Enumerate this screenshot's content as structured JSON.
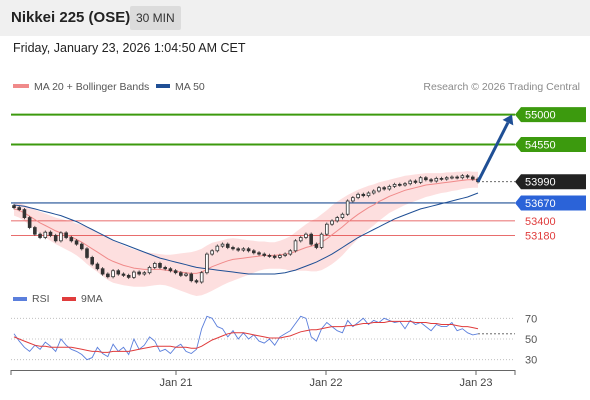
{
  "header": {
    "title": "Nikkei 225 (OSE)",
    "interval": "30 MIN",
    "timestamp": "Friday, January 23, 2026 1:04:50 AM CET"
  },
  "legend": {
    "ma20": "MA 20 + Bollinger Bands",
    "ma50": "MA 50",
    "credit": "Research © 2026 Trading Central",
    "rsi": "RSI",
    "ma9": "9MA"
  },
  "colors": {
    "green": "#3c9a0e",
    "blue": "#2b63d8",
    "blue_dark": "#1f4f95",
    "red": "#e03c3c",
    "ma20": "#f08a8a",
    "band": "#fdd9d9",
    "candle": "#333333",
    "rsi": "#5b7fdc"
  },
  "chart_data": [
    {
      "type": "candlestick",
      "title": "Nikkei 225 (OSE)",
      "interval": "30 MIN",
      "ylim": [
        52420,
        55250
      ],
      "x_ticks": [
        "Jan 21",
        "Jan 22",
        "Jan 23"
      ],
      "levels": [
        {
          "value": 55000,
          "label": "55000",
          "style": "resistance-green"
        },
        {
          "value": 54550,
          "label": "54550",
          "style": "resistance-green"
        },
        {
          "value": 53990,
          "label": "53990",
          "style": "last-price"
        },
        {
          "value": 53670,
          "label": "53670",
          "style": "pivot-blue"
        },
        {
          "value": 53400,
          "label": "53400",
          "style": "support-red"
        },
        {
          "value": 53180,
          "label": "53180",
          "style": "support-red"
        }
      ],
      "close": [
        53600,
        53570,
        53450,
        53300,
        53200,
        53150,
        53230,
        53180,
        53100,
        53220,
        53150,
        53100,
        53050,
        52980,
        52850,
        52750,
        52680,
        52600,
        52560,
        52650,
        52600,
        52580,
        52550,
        52630,
        52600,
        52620,
        52700,
        52760,
        52700,
        52680,
        52650,
        52620,
        52580,
        52600,
        52500,
        52480,
        52620,
        52900,
        52950,
        53020,
        53050,
        53000,
        52980,
        52960,
        52980,
        52950,
        52920,
        52900,
        52880,
        52870,
        52850,
        52880,
        52900,
        52950,
        53100,
        53150,
        53200,
        53050,
        53000,
        53200,
        53350,
        53400,
        53450,
        53500,
        53700,
        53750,
        53800,
        53780,
        53820,
        53850,
        53900,
        53880,
        53920,
        53950,
        53940,
        53960,
        54000,
        53980,
        54050,
        54020,
        54000,
        54040,
        54030,
        54050,
        54060,
        54050,
        54080,
        54060,
        54030,
        53990
      ],
      "ma20": [
        53580,
        53560,
        53520,
        53470,
        53420,
        53370,
        53330,
        53290,
        53250,
        53220,
        53190,
        53160,
        53120,
        53080,
        53030,
        52980,
        52930,
        52880,
        52830,
        52790,
        52760,
        52730,
        52710,
        52690,
        52680,
        52670,
        52670,
        52670,
        52670,
        52660,
        52650,
        52640,
        52630,
        52620,
        52610,
        52610,
        52630,
        52670,
        52710,
        52740,
        52770,
        52800,
        52820,
        52830,
        52840,
        52850,
        52860,
        52870,
        52880,
        52880,
        52880,
        52890,
        52900,
        52910,
        52940,
        52970,
        53000,
        53020,
        53040,
        53080,
        53130,
        53190,
        53250,
        53310,
        53380,
        53440,
        53500,
        53550,
        53600,
        53640,
        53690,
        53730,
        53770,
        53800,
        53830,
        53860,
        53880,
        53900,
        53920,
        53940,
        53950,
        53960,
        53970,
        53980,
        53990,
        54000,
        54010,
        54020,
        54020,
        54020
      ],
      "ma50": [
        53640,
        53630,
        53620,
        53600,
        53580,
        53560,
        53540,
        53520,
        53500,
        53480,
        53450,
        53420,
        53390,
        53350,
        53310,
        53270,
        53230,
        53190,
        53150,
        53110,
        53080,
        53050,
        53020,
        52990,
        52960,
        52930,
        52900,
        52870,
        52840,
        52820,
        52800,
        52780,
        52760,
        52740,
        52720,
        52700,
        52690,
        52680,
        52670,
        52660,
        52650,
        52640,
        52630,
        52620,
        52610,
        52600,
        52600,
        52600,
        52600,
        52600,
        52600,
        52610,
        52620,
        52640,
        52660,
        52690,
        52720,
        52750,
        52780,
        52820,
        52860,
        52900,
        52950,
        53000,
        53050,
        53100,
        53150,
        53190,
        53230,
        53270,
        53310,
        53350,
        53390,
        53430,
        53460,
        53490,
        53520,
        53550,
        53580,
        53600,
        53620,
        53640,
        53660,
        53680,
        53700,
        53720,
        53740,
        53760,
        53790,
        53820
      ],
      "band_width": [
        100,
        110,
        120,
        140,
        150,
        170,
        180,
        190,
        200,
        210,
        220,
        230,
        240,
        260,
        280,
        290,
        300,
        310,
        320,
        320,
        310,
        300,
        290,
        280,
        270,
        260,
        250,
        240,
        230,
        230,
        240,
        260,
        280,
        300,
        320,
        340,
        350,
        360,
        360,
        350,
        340,
        330,
        320,
        300,
        280,
        260,
        240,
        220,
        210,
        200,
        200,
        210,
        230,
        260,
        290,
        320,
        350,
        380,
        400,
        420,
        430,
        440,
        440,
        430,
        410,
        390,
        370,
        350,
        330,
        310,
        290,
        270,
        250,
        240,
        230,
        220,
        210,
        200,
        190,
        180,
        170,
        160,
        150,
        150,
        140,
        140,
        130,
        130,
        120,
        120
      ],
      "forecast_arrow": [
        53990,
        55000
      ]
    },
    {
      "type": "line",
      "title": "RSI",
      "ylim": [
        20,
        80
      ],
      "y_ticks": [
        30,
        50,
        70
      ],
      "x_ticks": [
        "Jan 21",
        "Jan 22",
        "Jan 23"
      ],
      "series": [
        {
          "name": "RSI",
          "values": [
            55,
            48,
            42,
            38,
            44,
            40,
            47,
            43,
            38,
            50,
            44,
            40,
            38,
            35,
            30,
            32,
            42,
            36,
            33,
            45,
            38,
            42,
            35,
            50,
            40,
            44,
            52,
            48,
            38,
            40,
            36,
            42,
            45,
            38,
            36,
            40,
            60,
            72,
            70,
            62,
            60,
            52,
            58,
            50,
            56,
            50,
            54,
            48,
            46,
            50,
            44,
            52,
            55,
            58,
            65,
            72,
            70,
            52,
            48,
            60,
            66,
            62,
            58,
            56,
            68,
            62,
            66,
            70,
            64,
            68,
            66,
            70,
            68,
            66,
            67,
            60,
            68,
            64,
            66,
            62,
            58,
            64,
            62,
            62,
            66,
            58,
            60,
            56,
            54,
            55
          ]
        },
        {
          "name": "9MA",
          "values": [
            52,
            50,
            48,
            46,
            44,
            43,
            43,
            42,
            42,
            42,
            42,
            42,
            41,
            40,
            39,
            38,
            38,
            37,
            37,
            38,
            38,
            38,
            38,
            39,
            40,
            41,
            42,
            43,
            43,
            43,
            43,
            42,
            42,
            42,
            41,
            41,
            43,
            46,
            49,
            51,
            53,
            55,
            56,
            56,
            56,
            55,
            54,
            53,
            52,
            51,
            51,
            51,
            52,
            53,
            55,
            57,
            58,
            59,
            59,
            60,
            61,
            62,
            62,
            62,
            63,
            63,
            64,
            65,
            65,
            66,
            66,
            66,
            67,
            67,
            67,
            67,
            67,
            66,
            66,
            66,
            65,
            65,
            64,
            64,
            64,
            63,
            62,
            62,
            61,
            60
          ]
        }
      ]
    }
  ]
}
